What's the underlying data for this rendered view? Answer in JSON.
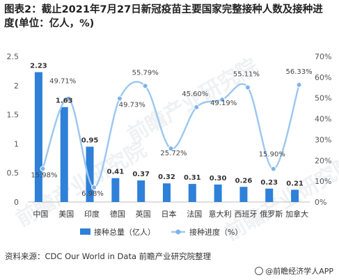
{
  "title": "图表2：截止2021年7月27日新冠疫苗主要国家完整接种人数及接种进度(单位：亿人，%)",
  "source": "资料来源：CDC Our World in Data 前瞻产业研究院整理",
  "brand": "@前瞻经济学人APP",
  "watermark": "前瞻产业研究院",
  "colors": {
    "bar": "#2e80d8",
    "line": "#9ec8ef",
    "point": "#7fb3e6",
    "axis_text": "#555555",
    "grid": "#e6e6e6"
  },
  "chart_data": {
    "type": "bar",
    "categories": [
      "中国",
      "美国",
      "印度",
      "德国",
      "英国",
      "日本",
      "法国",
      "意大利",
      "西班牙",
      "俄罗斯",
      "加拿大"
    ],
    "series": [
      {
        "name": "接种总量（亿人）",
        "type": "bar",
        "axis": "left",
        "values": [
          2.23,
          1.63,
          0.95,
          0.41,
          0.37,
          0.32,
          0.31,
          0.3,
          0.26,
          0.23,
          0.21
        ],
        "labels": [
          "2.23",
          "1.63",
          "0.95",
          "0.41",
          "0.37",
          "0.32",
          "0.31",
          "0.30",
          "0.26",
          "0.23",
          "0.21"
        ]
      },
      {
        "name": "接种进度（%）",
        "type": "line",
        "axis": "right",
        "values": [
          15.98,
          49.71,
          6.98,
          49.73,
          55.79,
          25.72,
          45.6,
          49.19,
          55.11,
          15.9,
          56.33
        ],
        "labels": [
          "15.98%",
          "49.71%",
          "6.98%",
          "49.73%",
          "55.79%",
          "25.72%",
          "45.60%",
          "49.19%",
          "55.11%",
          "15.90%",
          "56.33%"
        ]
      }
    ],
    "y_left": {
      "ylim": [
        0,
        2.5
      ],
      "ticks": [
        "0",
        "0.5",
        "1",
        "1.5",
        "2",
        "2.5"
      ]
    },
    "y_right": {
      "ylim": [
        0,
        70
      ],
      "ticks": [
        "0%",
        "10%",
        "20%",
        "30%",
        "40%",
        "50%",
        "60%",
        "70%"
      ]
    },
    "grid": false,
    "legend": "bottom",
    "line_smooth": true
  }
}
